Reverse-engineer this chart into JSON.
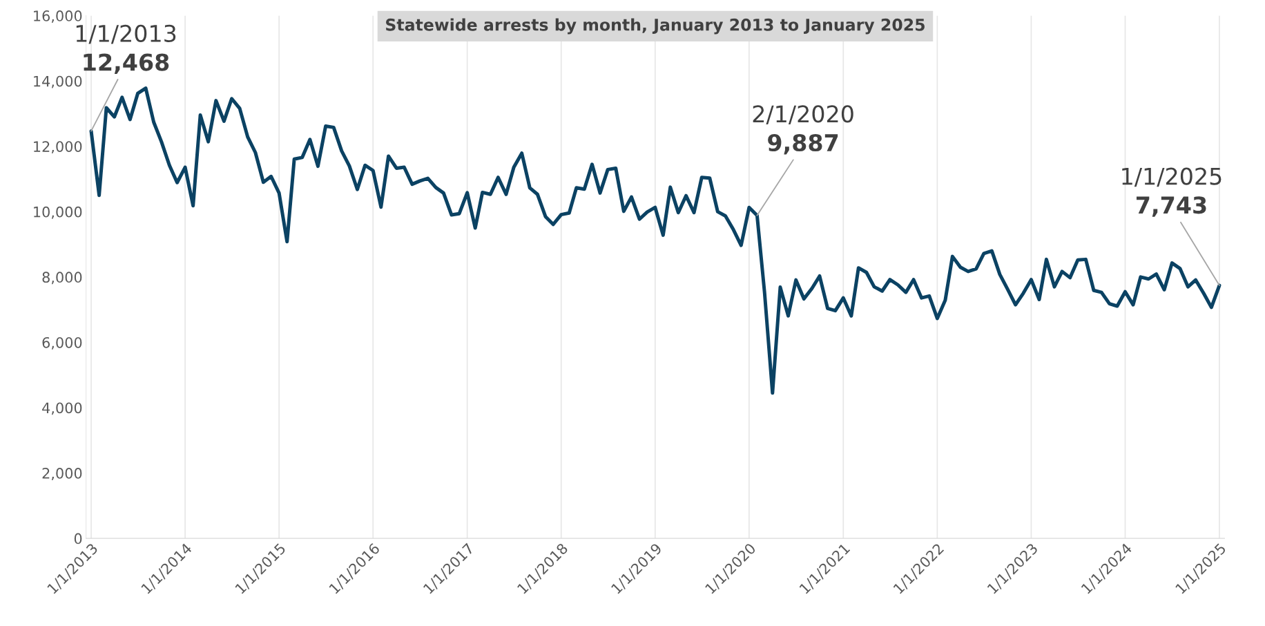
{
  "chart_data": {
    "type": "line",
    "title": "Statewide arrests by month, January 2013 to January 2025",
    "x": [
      "2013-01",
      "2013-02",
      "2013-03",
      "2013-04",
      "2013-05",
      "2013-06",
      "2013-07",
      "2013-08",
      "2013-09",
      "2013-10",
      "2013-11",
      "2013-12",
      "2014-01",
      "2014-02",
      "2014-03",
      "2014-04",
      "2014-05",
      "2014-06",
      "2014-07",
      "2014-08",
      "2014-09",
      "2014-10",
      "2014-11",
      "2014-12",
      "2015-01",
      "2015-02",
      "2015-03",
      "2015-04",
      "2015-05",
      "2015-06",
      "2015-07",
      "2015-08",
      "2015-09",
      "2015-10",
      "2015-11",
      "2015-12",
      "2016-01",
      "2016-02",
      "2016-03",
      "2016-04",
      "2016-05",
      "2016-06",
      "2016-07",
      "2016-08",
      "2016-09",
      "2016-10",
      "2016-11",
      "2016-12",
      "2017-01",
      "2017-02",
      "2017-03",
      "2017-04",
      "2017-05",
      "2017-06",
      "2017-07",
      "2017-08",
      "2017-09",
      "2017-10",
      "2017-11",
      "2017-12",
      "2018-01",
      "2018-02",
      "2018-03",
      "2018-04",
      "2018-05",
      "2018-06",
      "2018-07",
      "2018-08",
      "2018-09",
      "2018-10",
      "2018-11",
      "2018-12",
      "2019-01",
      "2019-02",
      "2019-03",
      "2019-04",
      "2019-05",
      "2019-06",
      "2019-07",
      "2019-08",
      "2019-09",
      "2019-10",
      "2019-11",
      "2019-12",
      "2020-01",
      "2020-02",
      "2020-03",
      "2020-04",
      "2020-05",
      "2020-06",
      "2020-07",
      "2020-08",
      "2020-09",
      "2020-10",
      "2020-11",
      "2020-12",
      "2021-01",
      "2021-02",
      "2021-03",
      "2021-04",
      "2021-05",
      "2021-06",
      "2021-07",
      "2021-08",
      "2021-09",
      "2021-10",
      "2021-11",
      "2021-12",
      "2022-01",
      "2022-02",
      "2022-03",
      "2022-04",
      "2022-05",
      "2022-06",
      "2022-07",
      "2022-08",
      "2022-09",
      "2022-10",
      "2022-11",
      "2022-12",
      "2023-01",
      "2023-02",
      "2023-03",
      "2023-04",
      "2023-05",
      "2023-06",
      "2023-07",
      "2023-08",
      "2023-09",
      "2023-10",
      "2023-11",
      "2023-12",
      "2024-01",
      "2024-02",
      "2024-03",
      "2024-04",
      "2024-05",
      "2024-06",
      "2024-07",
      "2024-08",
      "2024-09",
      "2024-10",
      "2024-11",
      "2024-12",
      "2025-01"
    ],
    "series": [
      {
        "color": "#0b4263",
        "values": [
          12468,
          10500,
          13180,
          12900,
          13500,
          12820,
          13620,
          13780,
          12740,
          12140,
          11420,
          10890,
          11360,
          10180,
          12960,
          12140,
          13400,
          12770,
          13460,
          13160,
          12290,
          11810,
          10900,
          11080,
          10570,
          9080,
          11610,
          11660,
          12210,
          11390,
          12620,
          12580,
          11860,
          11400,
          10680,
          11420,
          11260,
          10140,
          11700,
          11330,
          11360,
          10840,
          10940,
          11020,
          10740,
          10570,
          9900,
          9940,
          10580,
          9500,
          10590,
          10530,
          11050,
          10530,
          11360,
          11790,
          10730,
          10530,
          9850,
          9610,
          9910,
          9960,
          10730,
          10690,
          11450,
          10570,
          11290,
          11330,
          10010,
          10450,
          9770,
          9990,
          10130,
          9280,
          10750,
          9970,
          10490,
          9970,
          11050,
          11030,
          10000,
          9870,
          9450,
          8970,
          10130,
          9887,
          7530,
          4450,
          7690,
          6810,
          7910,
          7330,
          7650,
          8030,
          7040,
          6970,
          7360,
          6810,
          8280,
          8140,
          7700,
          7570,
          7920,
          7760,
          7530,
          7920,
          7360,
          7420,
          6730,
          7290,
          8630,
          8300,
          8170,
          8250,
          8720,
          8800,
          8080,
          7630,
          7150,
          7500,
          7920,
          7310,
          8540,
          7700,
          8170,
          7980,
          8520,
          8540,
          7590,
          7530,
          7180,
          7110,
          7550,
          7150,
          8000,
          7940,
          8090,
          7610,
          8430,
          8260,
          7700,
          7910,
          7500,
          7070,
          7743
        ]
      }
    ],
    "ylim": [
      0,
      16000
    ],
    "yticks": [
      {
        "value": 0,
        "label": "0"
      },
      {
        "value": 2000,
        "label": "2,000"
      },
      {
        "value": 4000,
        "label": "4,000"
      },
      {
        "value": 6000,
        "label": "6,000"
      },
      {
        "value": 8000,
        "label": "8,000"
      },
      {
        "value": 10000,
        "label": "10,000"
      },
      {
        "value": 12000,
        "label": "12,000"
      },
      {
        "value": 14000,
        "label": "14,000"
      },
      {
        "value": 16000,
        "label": "16,000"
      }
    ],
    "xlim": [
      "2013-01",
      "2025-01"
    ],
    "xticks": [
      {
        "value": "2013-01",
        "label": "1/1/2013"
      },
      {
        "value": "2014-01",
        "label": "1/1/2014"
      },
      {
        "value": "2015-01",
        "label": "1/1/2015"
      },
      {
        "value": "2016-01",
        "label": "1/1/2016"
      },
      {
        "value": "2017-01",
        "label": "1/1/2017"
      },
      {
        "value": "2018-01",
        "label": "1/1/2018"
      },
      {
        "value": "2019-01",
        "label": "1/1/2019"
      },
      {
        "value": "2020-01",
        "label": "1/1/2020"
      },
      {
        "value": "2021-01",
        "label": "1/1/2021"
      },
      {
        "value": "2022-01",
        "label": "1/1/2022"
      },
      {
        "value": "2023-01",
        "label": "1/1/2023"
      },
      {
        "value": "2024-01",
        "label": "1/1/2024"
      },
      {
        "value": "2025-01",
        "label": "1/1/2025"
      }
    ],
    "annotations": [
      "1/1/2013",
      {
        "text": "12,468",
        "x": "2013-01",
        "y": 12468
      },
      "2/1/2020",
      {
        "text": "9,887",
        "x": "2020-02",
        "y": 9887
      },
      "1/1/2025",
      {
        "text": "7,743",
        "x": "2025-01",
        "y": 7743
      }
    ],
    "grid": "x",
    "legend": false,
    "marker": "none",
    "line_style": "solid"
  }
}
